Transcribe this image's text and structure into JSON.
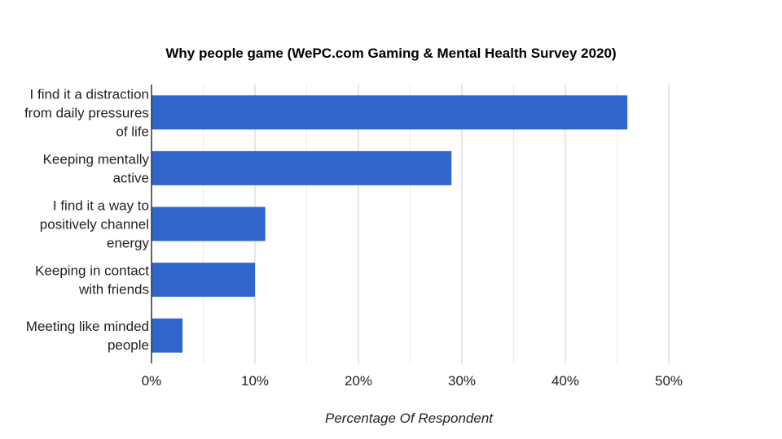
{
  "chart_data": {
    "type": "bar",
    "orientation": "horizontal",
    "title": "Why people game (WePC.com Gaming & Mental Health Survey 2020)",
    "xlabel": "Percentage Of Respondent",
    "ylabel": "",
    "categories": [
      [
        "I find it a distraction",
        "from daily pressures",
        "of life"
      ],
      [
        "Keeping mentally",
        "active"
      ],
      [
        "I find it a way to",
        "positively channel",
        "energy"
      ],
      [
        "Keeping in contact",
        "with friends"
      ],
      [
        "Meeting like minded",
        "people"
      ]
    ],
    "values": [
      46,
      29,
      11,
      10,
      3
    ],
    "unit": "%",
    "xlim": [
      0,
      50
    ],
    "xticks": [
      0,
      10,
      20,
      30,
      40,
      50
    ],
    "xtick_labels": [
      "0%",
      "10%",
      "20%",
      "30%",
      "40%",
      "50%"
    ],
    "grid": true,
    "bar_color": "#3366cc",
    "grid_color": "#cccccc"
  }
}
